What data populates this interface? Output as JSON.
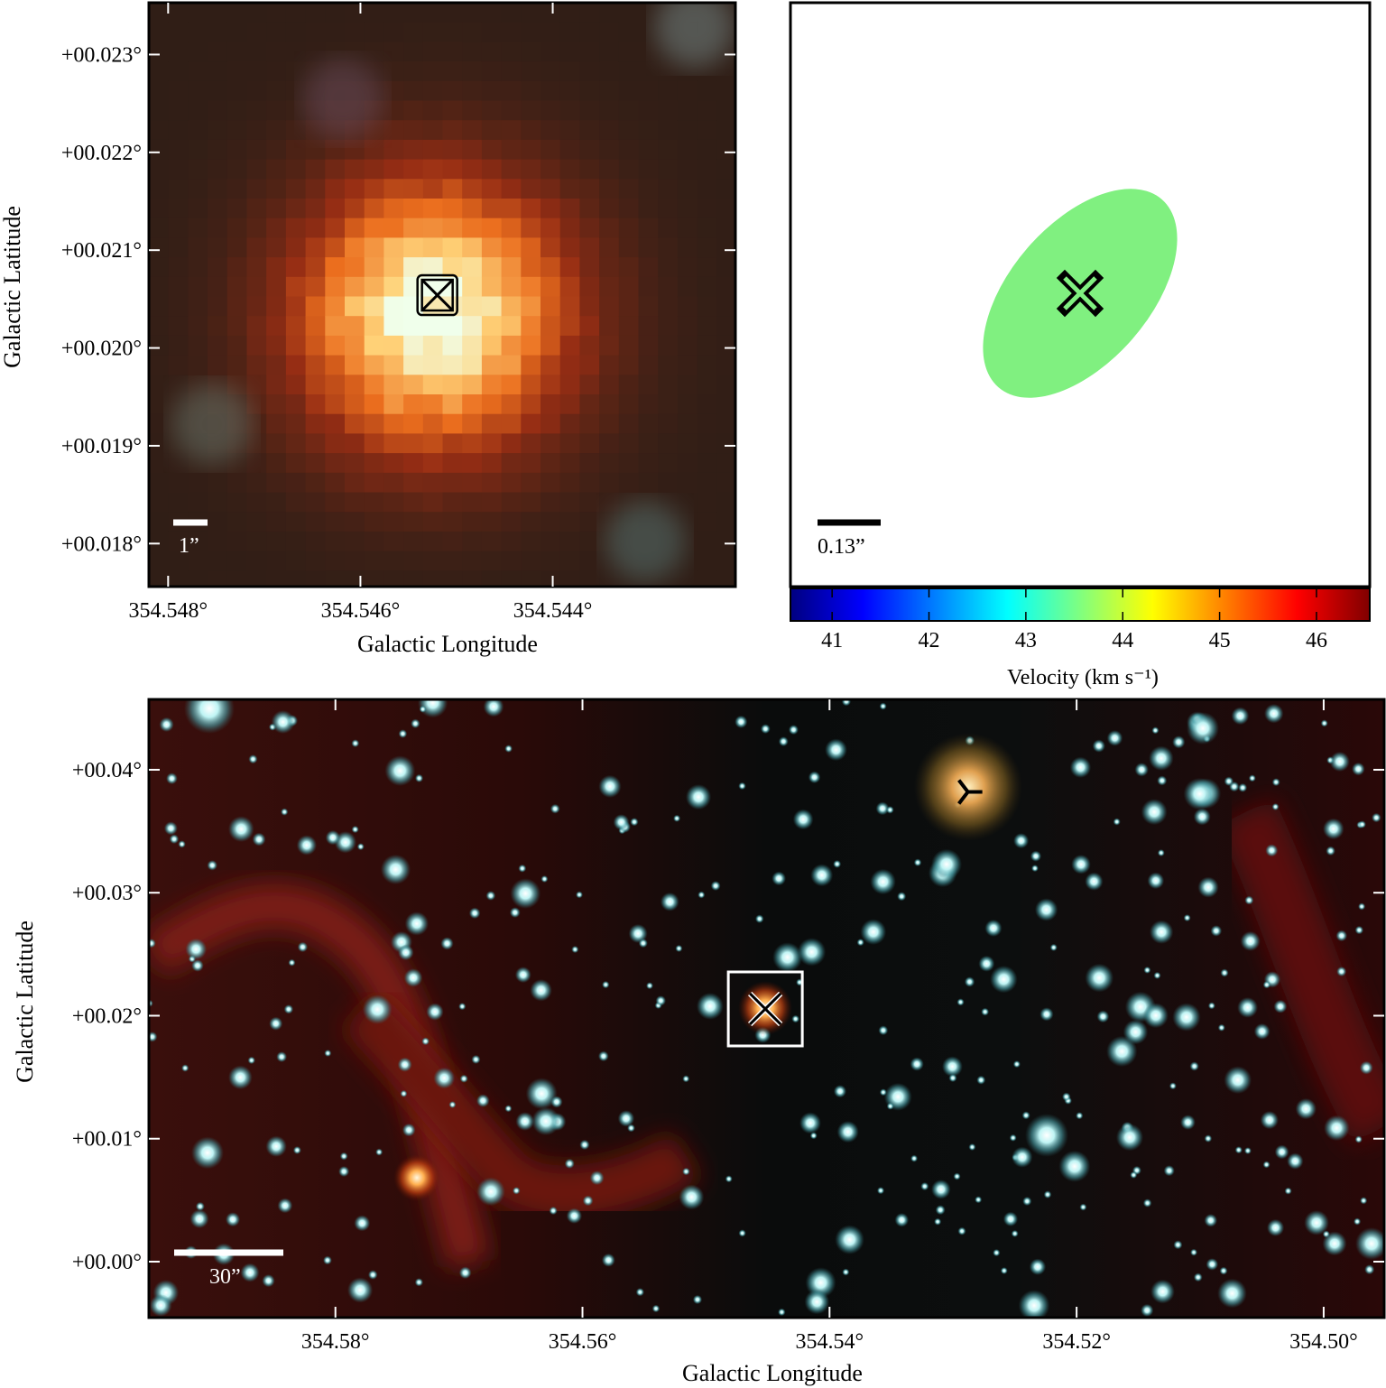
{
  "chart_data": [
    {
      "type": "image",
      "x_label": "Galactic Longitude",
      "y_label": "Galactic Latitude",
      "xlim": [
        354.5482,
        354.5421
      ],
      "ylim": [
        0.01756,
        0.02353
      ],
      "xticks": [
        {
          "value": 354.548,
          "label": "354.548°"
        },
        {
          "value": 354.546,
          "label": "354.546°"
        },
        {
          "value": 354.544,
          "label": "354.544°"
        }
      ],
      "yticks": [
        {
          "value": 0.018,
          "label": "+00.018°"
        },
        {
          "value": 0.019,
          "label": "+00.019°"
        },
        {
          "value": 0.02,
          "label": "+00.020°"
        },
        {
          "value": 0.021,
          "label": "+00.021°"
        },
        {
          "value": 0.022,
          "label": "+00.022°"
        },
        {
          "value": 0.023,
          "label": "+00.023°"
        }
      ],
      "scale_bar": "1”",
      "markers": [
        {
          "symbol": "boxed-x",
          "x": 354.5452,
          "y": 0.02054
        }
      ]
    },
    {
      "type": "ellipse",
      "scale_bar": "0.13”",
      "ellipse_color": "#80f080",
      "colorbar": {
        "label": "Velocity (km s⁻¹)",
        "lim": [
          40.57,
          46.55
        ],
        "ticks": [
          41,
          42,
          43,
          44,
          45,
          46
        ]
      }
    },
    {
      "type": "image",
      "x_label": "Galactic Longitude",
      "y_label": "Galactic Latitude",
      "xlim": [
        354.5951,
        354.4951
      ],
      "ylim": [
        -0.00455,
        0.04572
      ],
      "xticks": [
        {
          "value": 354.58,
          "label": "354.58°"
        },
        {
          "value": 354.56,
          "label": "354.56°"
        },
        {
          "value": 354.54,
          "label": "354.54°"
        },
        {
          "value": 354.52,
          "label": "354.52°"
        },
        {
          "value": 354.5,
          "label": "354.50°"
        }
      ],
      "yticks": [
        {
          "value": 0.0,
          "label": "+00.00°"
        },
        {
          "value": 0.01,
          "label": "+00.01°"
        },
        {
          "value": 0.02,
          "label": "+00.02°"
        },
        {
          "value": 0.03,
          "label": "+00.03°"
        },
        {
          "value": 0.04,
          "label": "+00.04°"
        }
      ],
      "scale_bar": "30”",
      "markers": [
        {
          "symbol": "boxed-x",
          "x": 354.5452,
          "y": 0.02055
        },
        {
          "symbol": "tri",
          "x": 354.5288,
          "y": 0.0382
        }
      ]
    }
  ]
}
